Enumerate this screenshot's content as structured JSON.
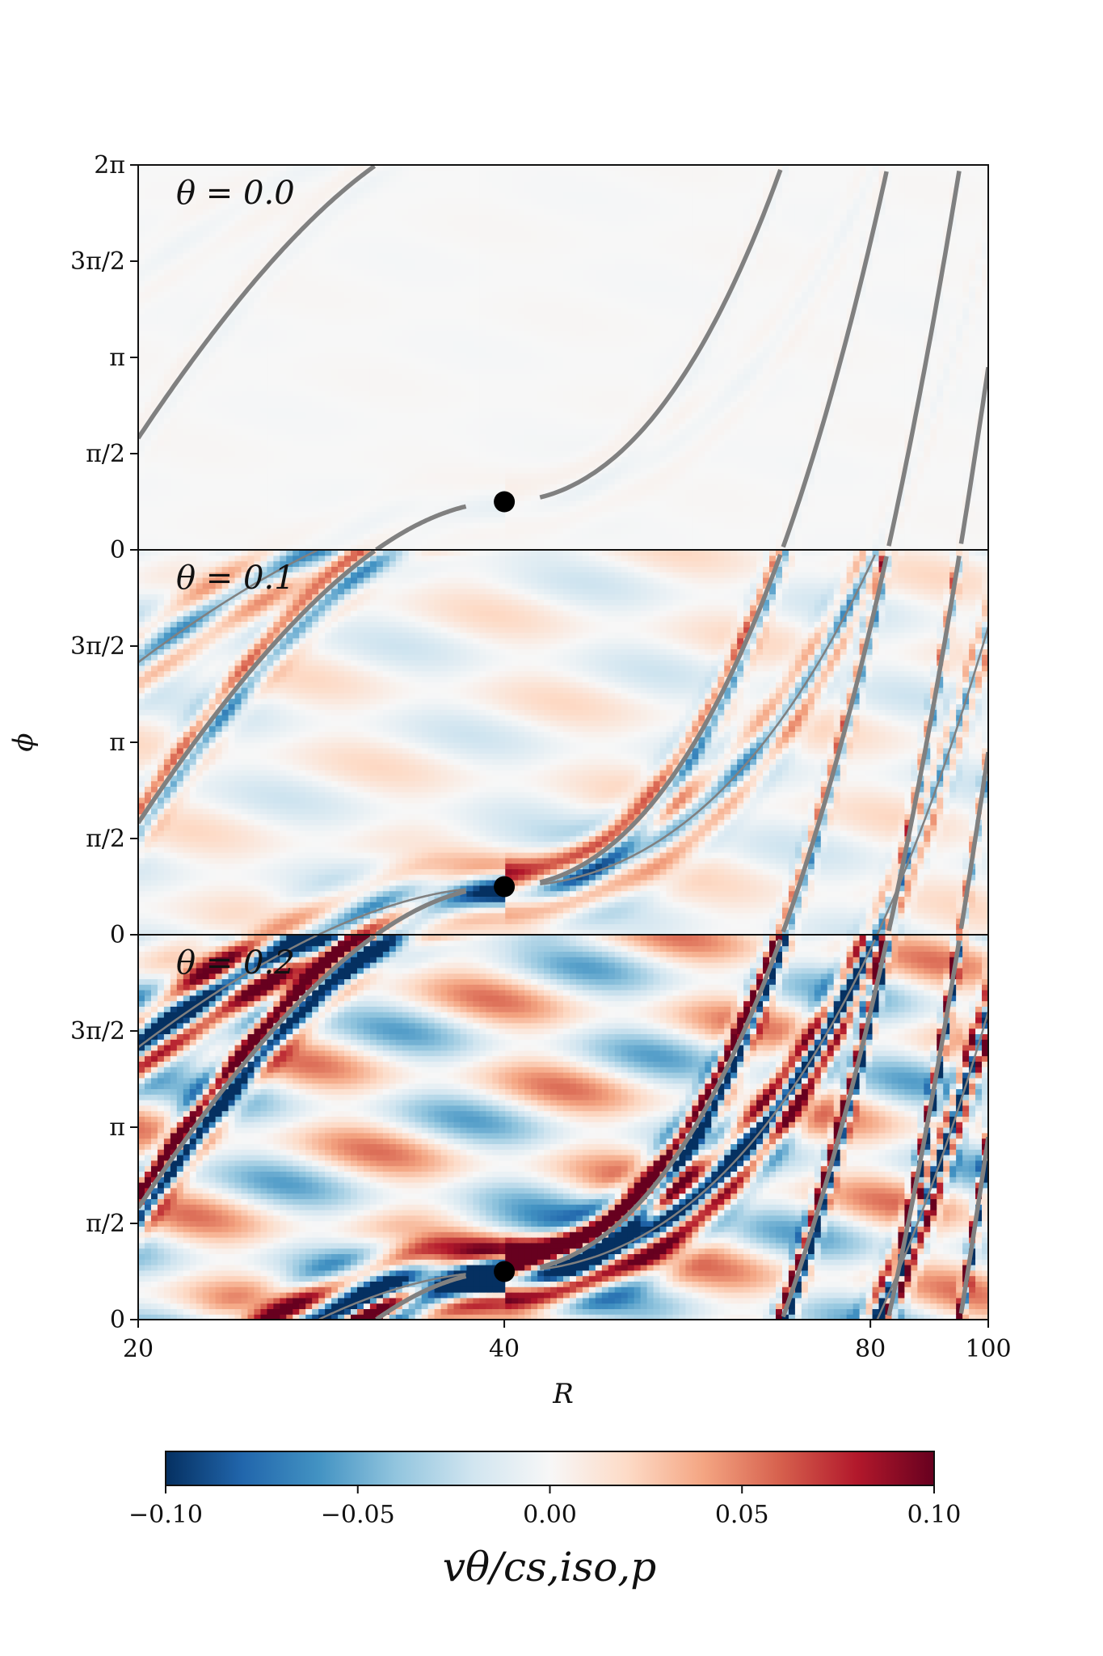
{
  "chart_data": {
    "type": "heatmap",
    "xlabel": "R",
    "ylabel": "ϕ",
    "x_scale": "log",
    "xlim": [
      20,
      100
    ],
    "ylim": [
      0,
      6.2832
    ],
    "x_ticks": [
      {
        "value": 20,
        "label": "20"
      },
      {
        "value": 40,
        "label": "40"
      },
      {
        "value": 80,
        "label": "80"
      },
      {
        "value": 100,
        "label": "100"
      }
    ],
    "y_ticks": [
      {
        "value": 0,
        "label": "0"
      },
      {
        "value": 1.5708,
        "label": "π/2"
      },
      {
        "value": 3.1416,
        "label": "π"
      },
      {
        "value": 4.7124,
        "label": "3π/2"
      },
      {
        "value": 6.2832,
        "label": "2π"
      }
    ],
    "panels": [
      {
        "title": "θ = 0.0",
        "theta": 0.0,
        "amplitude": 0.004
      },
      {
        "title": "θ = 0.1",
        "theta": 0.1,
        "amplitude": 0.06
      },
      {
        "title": "θ = 0.2",
        "theta": 0.2,
        "amplitude": 0.16
      }
    ],
    "planet": {
      "R": 40,
      "phi": 0.785
    },
    "colorbar": {
      "label": "vθ/cs,iso,p",
      "min": -0.1,
      "max": 0.1,
      "ticks": [
        {
          "value": -0.1,
          "label": "−0.10"
        },
        {
          "value": -0.05,
          "label": "−0.05"
        },
        {
          "value": 0.0,
          "label": "0.00"
        },
        {
          "value": 0.05,
          "label": "0.05"
        },
        {
          "value": 0.1,
          "label": "0.10"
        }
      ],
      "colors": [
        "#053061",
        "#2166ac",
        "#4393c3",
        "#92c5de",
        "#d1e5f0",
        "#f7f7f7",
        "#fddbc7",
        "#f4a582",
        "#d6604d",
        "#b2182b",
        "#67001f"
      ]
    },
    "spiral_color": "#808080"
  }
}
